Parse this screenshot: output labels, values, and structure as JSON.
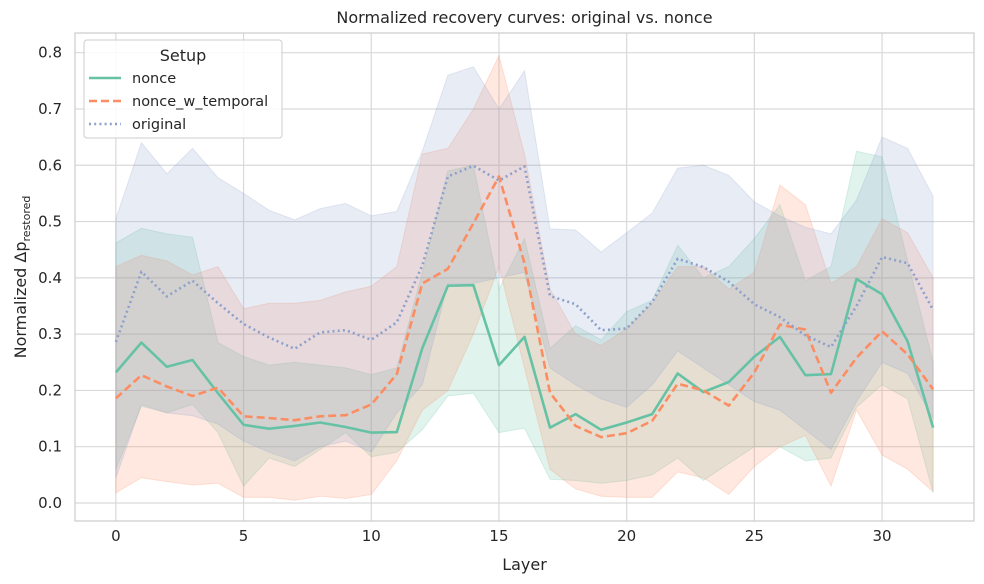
{
  "chart_data": {
    "type": "line",
    "title": "Normalized recovery curves: original vs. nonce",
    "xlabel": "Layer",
    "ylabel": "Normalized Δp",
    "ylabel_subscript": "restored",
    "xlim": [
      -1.6,
      33.6
    ],
    "ylim": [
      -0.032,
      0.835
    ],
    "xticks": [
      0,
      5,
      10,
      15,
      20,
      25,
      30
    ],
    "yticks": [
      0.0,
      0.1,
      0.2,
      0.3,
      0.4,
      0.5,
      0.6,
      0.7,
      0.8
    ],
    "ytick_labels": [
      "0.0",
      "0.1",
      "0.2",
      "0.3",
      "0.4",
      "0.5",
      "0.6",
      "0.7",
      "0.8"
    ],
    "grid": true,
    "legend": {
      "title": "Setup",
      "position": "top-left"
    },
    "x": [
      0,
      1,
      2,
      3,
      4,
      5,
      6,
      7,
      8,
      9,
      10,
      11,
      12,
      13,
      14,
      15,
      16,
      17,
      18,
      19,
      20,
      21,
      22,
      23,
      24,
      25,
      26,
      27,
      28,
      29,
      30,
      31,
      32
    ],
    "series": [
      {
        "name": "nonce",
        "color": "#66c2a5",
        "style": "solid",
        "values": [
          0.232,
          0.285,
          0.242,
          0.254,
          0.195,
          0.139,
          0.132,
          0.137,
          0.143,
          0.135,
          0.125,
          0.126,
          0.275,
          0.386,
          0.387,
          0.245,
          0.295,
          0.134,
          0.158,
          0.13,
          0.143,
          0.158,
          0.23,
          0.197,
          0.215,
          0.26,
          0.295,
          0.227,
          0.229,
          0.398,
          0.371,
          0.287,
          0.134
        ],
        "lower": [
          0.06,
          0.172,
          0.16,
          0.175,
          0.125,
          0.03,
          0.08,
          0.065,
          0.095,
          0.125,
          0.082,
          0.09,
          0.13,
          0.19,
          0.195,
          0.125,
          0.133,
          0.042,
          0.04,
          0.035,
          0.04,
          0.05,
          0.08,
          0.04,
          0.07,
          0.1,
          0.1,
          0.075,
          0.08,
          0.17,
          0.21,
          0.185,
          0.018
        ],
        "upper": [
          0.462,
          0.488,
          0.478,
          0.472,
          0.285,
          0.26,
          0.245,
          0.25,
          0.245,
          0.24,
          0.228,
          0.24,
          0.41,
          0.59,
          0.6,
          0.38,
          0.47,
          0.275,
          0.315,
          0.29,
          0.34,
          0.36,
          0.458,
          0.4,
          0.42,
          0.47,
          0.53,
          0.395,
          0.42,
          0.625,
          0.615,
          0.43,
          0.25
        ]
      },
      {
        "name": "nonce_w_temporal",
        "color": "#fc8d62",
        "style": "dashed",
        "values": [
          0.186,
          0.227,
          0.207,
          0.19,
          0.205,
          0.154,
          0.151,
          0.147,
          0.154,
          0.156,
          0.175,
          0.229,
          0.39,
          0.416,
          0.497,
          0.58,
          0.426,
          0.196,
          0.137,
          0.117,
          0.124,
          0.146,
          0.212,
          0.2,
          0.173,
          0.232,
          0.317,
          0.308,
          0.196,
          0.258,
          0.305,
          0.264,
          0.202
        ],
        "lower": [
          0.018,
          0.045,
          0.038,
          0.032,
          0.035,
          0.01,
          0.01,
          0.005,
          0.012,
          0.008,
          0.015,
          0.075,
          0.165,
          0.2,
          0.3,
          0.42,
          0.24,
          0.06,
          0.025,
          0.012,
          0.01,
          0.01,
          0.055,
          0.045,
          0.015,
          0.065,
          0.1,
          0.12,
          0.03,
          0.165,
          0.085,
          0.06,
          0.02
        ],
        "upper": [
          0.42,
          0.44,
          0.43,
          0.405,
          0.42,
          0.345,
          0.355,
          0.355,
          0.36,
          0.375,
          0.385,
          0.42,
          0.62,
          0.63,
          0.7,
          0.795,
          0.62,
          0.38,
          0.3,
          0.28,
          0.31,
          0.355,
          0.42,
          0.42,
          0.38,
          0.41,
          0.565,
          0.53,
          0.39,
          0.42,
          0.505,
          0.48,
          0.4
        ]
      },
      {
        "name": "original",
        "color": "#8da0cb",
        "style": "dotted",
        "values": [
          0.286,
          0.411,
          0.367,
          0.395,
          0.355,
          0.318,
          0.294,
          0.274,
          0.303,
          0.307,
          0.29,
          0.321,
          0.422,
          0.58,
          0.599,
          0.573,
          0.598,
          0.368,
          0.353,
          0.307,
          0.31,
          0.357,
          0.434,
          0.419,
          0.393,
          0.353,
          0.33,
          0.298,
          0.277,
          0.35,
          0.437,
          0.426,
          0.343
        ],
        "lower": [
          0.045,
          0.175,
          0.16,
          0.155,
          0.14,
          0.11,
          0.09,
          0.075,
          0.1,
          0.11,
          0.09,
          0.16,
          0.21,
          0.39,
          0.39,
          0.4,
          0.41,
          0.24,
          0.21,
          0.185,
          0.17,
          0.21,
          0.27,
          0.24,
          0.21,
          0.18,
          0.165,
          0.13,
          0.095,
          0.18,
          0.25,
          0.23,
          0.15
        ],
        "upper": [
          0.505,
          0.64,
          0.585,
          0.63,
          0.578,
          0.55,
          0.52,
          0.503,
          0.523,
          0.532,
          0.51,
          0.518,
          0.625,
          0.76,
          0.775,
          0.7,
          0.768,
          0.487,
          0.485,
          0.446,
          0.48,
          0.515,
          0.595,
          0.6,
          0.582,
          0.535,
          0.51,
          0.49,
          0.478,
          0.538,
          0.65,
          0.63,
          0.545
        ]
      }
    ]
  }
}
